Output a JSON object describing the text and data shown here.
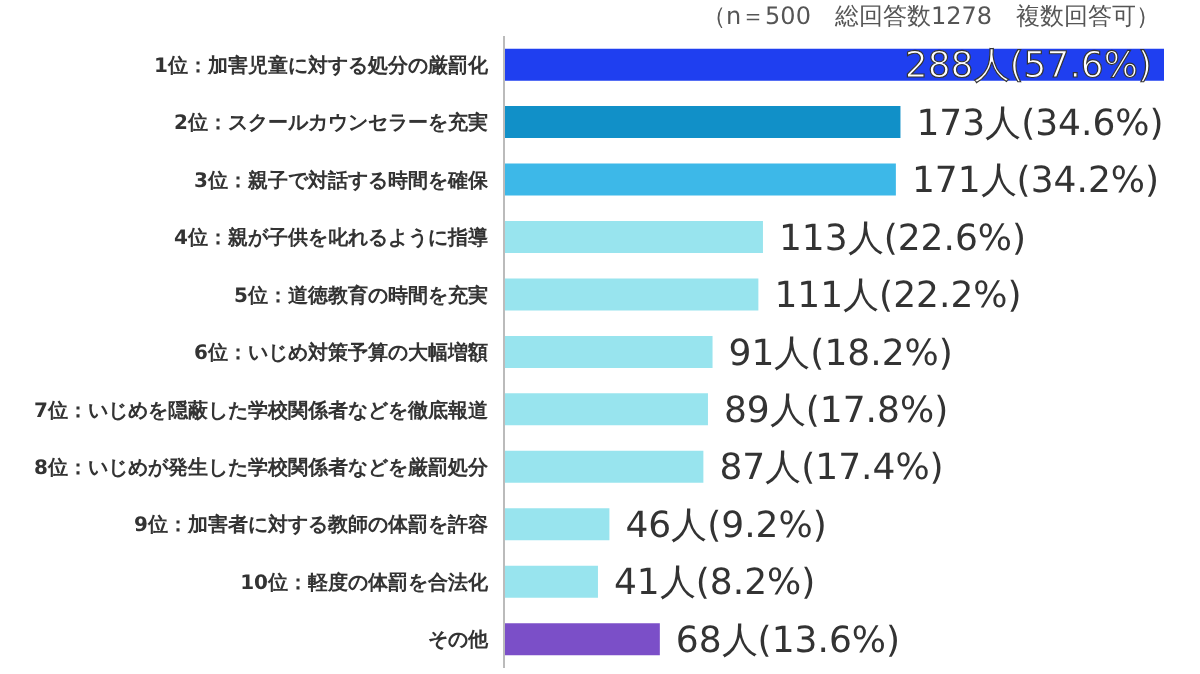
{
  "chart_data": {
    "type": "bar",
    "orientation": "horizontal",
    "subtitle": "（n＝500　総回答数1278　複数回答可）",
    "categories": [
      "1位：加害児童に対する処分の厳罰化",
      "2位：スクールカウンセラーを充実",
      "3位：親子で対話する時間を確保",
      "4位：親が子供を叱れるように指導",
      "5位：道徳教育の時間を充実",
      "6位：いじめ対策予算の大幅増額",
      "7位：いじめを隠蔽した学校関係者などを徹底報道",
      "8位：いじめが発生した学校関係者などを厳罰処分",
      "9位：加害者に対する教師の体罰を許容",
      "10位：軽度の体罰を合法化",
      "その他"
    ],
    "values": [
      288,
      173,
      171,
      113,
      111,
      91,
      89,
      87,
      46,
      41,
      68
    ],
    "colors": [
      "#1f3ff0",
      "#1190c8",
      "#3db8e8",
      "#98e4ee",
      "#98e4ee",
      "#98e4ee",
      "#98e4ee",
      "#98e4ee",
      "#98e4ee",
      "#98e4ee",
      "#7b4fc8"
    ],
    "value_labels": [
      "288人(57.6%)",
      "173人(34.6%)",
      "171人(34.2%)",
      "113人(22.6%)",
      "111人(22.2%)",
      "91人(18.2%)",
      "89人(17.8%)",
      "87人(17.4%)",
      "46人(9.2%)",
      "41人(8.2%)",
      "68人(13.6%)"
    ],
    "tick_labels": "y"
  }
}
